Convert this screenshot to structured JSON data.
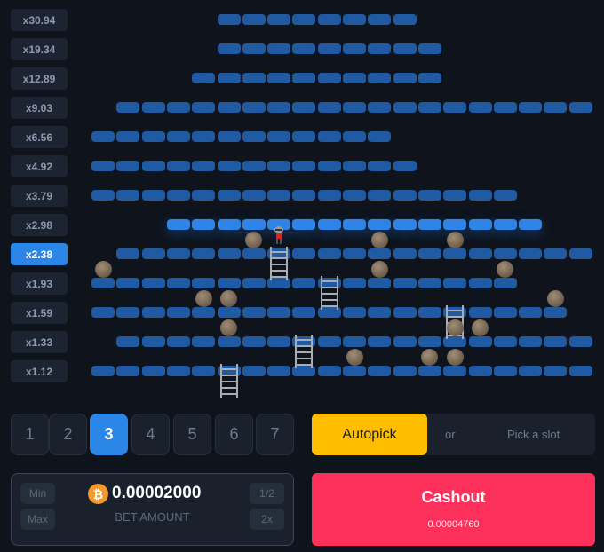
{
  "multipliers": [
    "x30.94",
    "x19.34",
    "x12.89",
    "x9.03",
    "x6.56",
    "x4.92",
    "x3.79",
    "x2.98",
    "x2.38",
    "x1.93",
    "x1.59",
    "x1.33",
    "x1.12"
  ],
  "active_multiplier_index": 8,
  "board": {
    "rows": [
      [
        5,
        12
      ],
      [
        5,
        13
      ],
      [
        4,
        13
      ],
      [
        1,
        19
      ],
      [
        0,
        11
      ],
      [
        0,
        12
      ],
      [
        0,
        16
      ],
      [
        3,
        17
      ],
      [
        1,
        19
      ],
      [
        0,
        16
      ],
      [
        0,
        18
      ],
      [
        1,
        19
      ],
      [
        0,
        19
      ]
    ],
    "highlighted_row": 7,
    "rocks": [
      [
        8,
        6
      ],
      [
        8,
        11
      ],
      [
        8,
        14
      ],
      [
        9,
        0
      ],
      [
        9,
        11
      ],
      [
        9,
        16
      ],
      [
        10,
        4
      ],
      [
        10,
        5
      ],
      [
        10,
        18
      ],
      [
        11,
        5
      ],
      [
        11,
        14
      ],
      [
        11,
        15
      ],
      [
        12,
        10
      ],
      [
        12,
        13
      ],
      [
        12,
        14
      ]
    ],
    "ladders": [
      [
        8,
        7
      ],
      [
        9,
        9
      ],
      [
        10,
        14
      ],
      [
        11,
        8
      ],
      [
        12,
        5
      ]
    ],
    "player": [
      7,
      7
    ]
  },
  "difficulty": {
    "options": [
      "1",
      "2",
      "3",
      "4",
      "5",
      "6",
      "7"
    ],
    "selected": 2
  },
  "pick": {
    "autopick": "Autopick",
    "or": "or",
    "pick_slot": "Pick a slot"
  },
  "bet": {
    "min": "Min",
    "max": "Max",
    "half": "1/2",
    "double": "2x",
    "coin_icon": "bitcoin-icon",
    "coin_symbol": "₿",
    "amount": "0.00002000",
    "label": "BET AMOUNT"
  },
  "cashout": {
    "label": "Cashout",
    "value": "0.00004760"
  },
  "colors": {
    "accent": "#2c86e8",
    "platform": "#1f5aa3",
    "autopick": "#ffbf00",
    "cashout": "#fd2f5b"
  }
}
